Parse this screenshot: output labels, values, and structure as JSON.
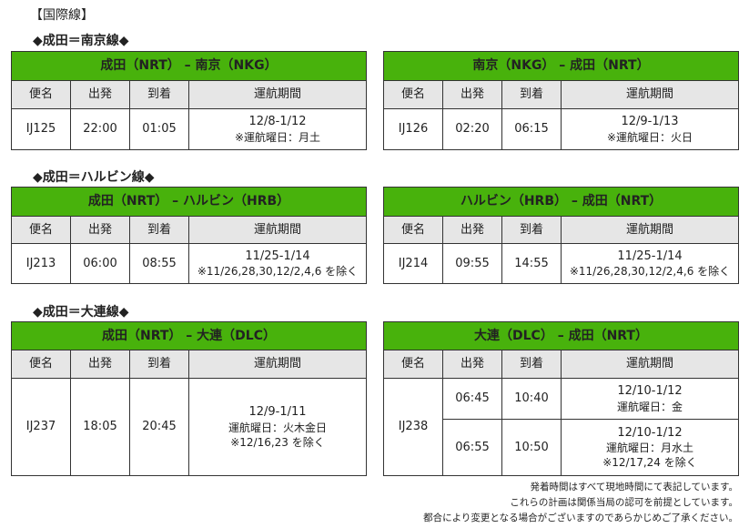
{
  "page_title": "【国際線】",
  "columns": [
    "便名",
    "出発",
    "到着",
    "運航期間"
  ],
  "sections": [
    {
      "heading": "◆成田＝南京線◆",
      "tables": [
        {
          "route": "成田（NRT） – 南京（NKG）",
          "flights": [
            {
              "flight": "IJ125",
              "legs": [
                {
                  "dep": "22:00",
                  "arr": "01:05",
                  "period": [
                    "12/8-1/12",
                    "※運航曜日：月土"
                  ]
                }
              ]
            }
          ]
        },
        {
          "route": "南京（NKG） – 成田（NRT）",
          "flights": [
            {
              "flight": "IJ126",
              "legs": [
                {
                  "dep": "02:20",
                  "arr": "06:15",
                  "period": [
                    "12/9-1/13",
                    "※運航曜日：火日"
                  ]
                }
              ]
            }
          ]
        }
      ]
    },
    {
      "heading": "◆成田＝ハルビン線◆",
      "tables": [
        {
          "route": "成田（NRT） – ハルビン（HRB）",
          "flights": [
            {
              "flight": "IJ213",
              "legs": [
                {
                  "dep": "06:00",
                  "arr": "08:55",
                  "period": [
                    "11/25-1/14",
                    "※11/26,28,30,12/2,4,6 を除く"
                  ]
                }
              ]
            }
          ]
        },
        {
          "route": "ハルビン（HRB） – 成田（NRT）",
          "flights": [
            {
              "flight": "IJ214",
              "legs": [
                {
                  "dep": "09:55",
                  "arr": "14:55",
                  "period": [
                    "11/25-1/14",
                    "※11/26,28,30,12/2,4,6 を除く"
                  ]
                }
              ]
            }
          ]
        }
      ]
    },
    {
      "heading": "◆成田＝大連線◆",
      "tables": [
        {
          "route": "成田（NRT） – 大連（DLC）",
          "flights": [
            {
              "flight": "IJ237",
              "legs": [
                {
                  "dep": "18:05",
                  "arr": "20:45",
                  "period": [
                    "12/9-1/11",
                    "運航曜日：火木金日",
                    "※12/16,23 を除く"
                  ]
                }
              ]
            }
          ]
        },
        {
          "route": "大連（DLC） – 成田（NRT）",
          "flights": [
            {
              "flight": "IJ238",
              "legs": [
                {
                  "dep": "06:45",
                  "arr": "10:40",
                  "period": [
                    "12/10-1/12",
                    "運航曜日：金"
                  ]
                },
                {
                  "dep": "06:55",
                  "arr": "10:50",
                  "period": [
                    "12/10-1/12",
                    "運航曜日：月水土",
                    "※12/17,24 を除く"
                  ]
                }
              ]
            }
          ]
        }
      ]
    }
  ],
  "footnotes": [
    "発着時間はすべて現地時間にて表記しています。",
    "これらの計画は関係当局の認可を前提としています。",
    "都合により変更となる場合がございますのであらかじめご了承ください。"
  ],
  "colors": {
    "header_green": "#48b20c",
    "column_header_gray": "#e6e6e6"
  }
}
